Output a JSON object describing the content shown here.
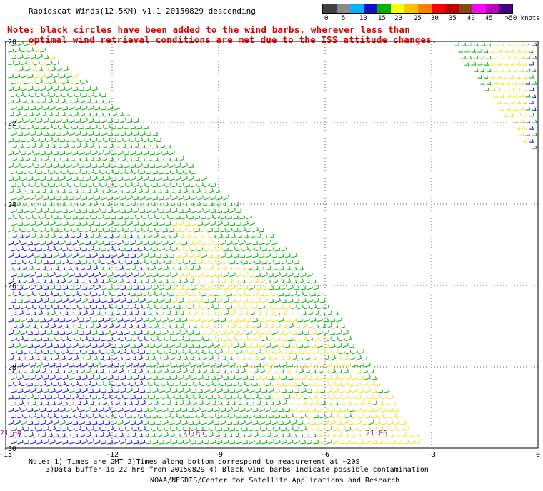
{
  "header": {
    "title": "Rapidscat Winds(12.5KM) v1.1 20150829 descending",
    "note_line1": "Note: black circles have been added to the wind barbs, wherever less than",
    "note_line2": "optimal wind retrieval conditions are met due to the ISS attitude changes."
  },
  "legend": {
    "colors": [
      "#404040",
      "#8a8a8a",
      "#00b4ff",
      "#1010d0",
      "#00b000",
      "#ffff00",
      "#ffc000",
      "#ff8000",
      "#ff0000",
      "#c00000",
      "#8b4513",
      "#ff00ff",
      "#c000c0",
      "#400080"
    ],
    "labels": [
      "0",
      "5",
      "10",
      "15",
      "20",
      "25",
      "30",
      "35",
      "40",
      "45",
      ">50 knots"
    ]
  },
  "axes": {
    "x_ticks": [
      "-15",
      "-12",
      "-9",
      "-6",
      "-3",
      "0"
    ],
    "y_ticks": [
      "-20",
      "-22",
      "-24",
      "-26",
      "-28",
      "-30"
    ]
  },
  "time_labels": [
    "21:04",
    "21:05",
    "21:06"
  ],
  "map_data": {
    "lon_range": [
      -15,
      0
    ],
    "lat_range": [
      -30,
      -20
    ],
    "swaths": [
      {
        "name": "main",
        "vertices_lonlat": [
          [
            -15,
            -20
          ],
          [
            -14.4,
            -20
          ],
          [
            -11,
            -22.2
          ],
          [
            -6.7,
            -25.5
          ],
          [
            -3.3,
            -30
          ],
          [
            -15,
            -30
          ]
        ]
      },
      {
        "name": "northeast",
        "vertices_lonlat": [
          [
            -2.6,
            -20
          ],
          [
            0,
            -20
          ],
          [
            0,
            -23.0
          ]
        ]
      }
    ],
    "wind_zones": [
      {
        "color": "green",
        "kts": "15-20",
        "area": "most of swath"
      },
      {
        "color": "blue",
        "kts": "10-15",
        "area": "southwest (-15..-11E, -25..-30S)"
      },
      {
        "color": "yellow",
        "kts": "20-25",
        "area": "swath edge near -9..-4E and northeast corner"
      }
    ]
  },
  "footer": {
    "line1": "Note: 1) Times are GMT 2)Times along bottom correspond to measurement at ~20S",
    "line2": "3)Data buffer is 22 hrs from 20150829 4) Black wind barbs indicate possible contamination",
    "line3": "NOAA/NESDIS/Center for Satellite Applications and Research"
  }
}
